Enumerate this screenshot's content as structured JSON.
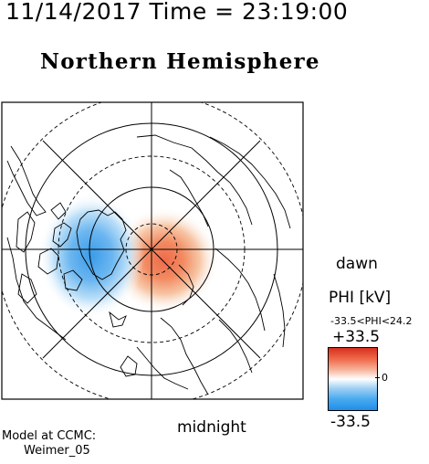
{
  "header": {
    "time_title": "11/14/2017 Time = 23:19:00",
    "hemisphere_title": "Northern Hemisphere"
  },
  "map": {
    "label_dawn": "dawn",
    "label_midnight": "midnight",
    "cell_color_positive": "#f07a4e",
    "cell_color_negative": "#3a9be9"
  },
  "legend": {
    "title": "PHI [kV]",
    "range_text": "-33.5<PHI<24.2",
    "max_label": "+33.5",
    "mid_label": "0",
    "min_label": "-33.5",
    "gradient_colors": [
      "#d7301f",
      "#ffffff",
      "#1f8fe8"
    ]
  },
  "credit": {
    "line1": "Model at CCMC:",
    "line2": "Weimer_05"
  }
}
